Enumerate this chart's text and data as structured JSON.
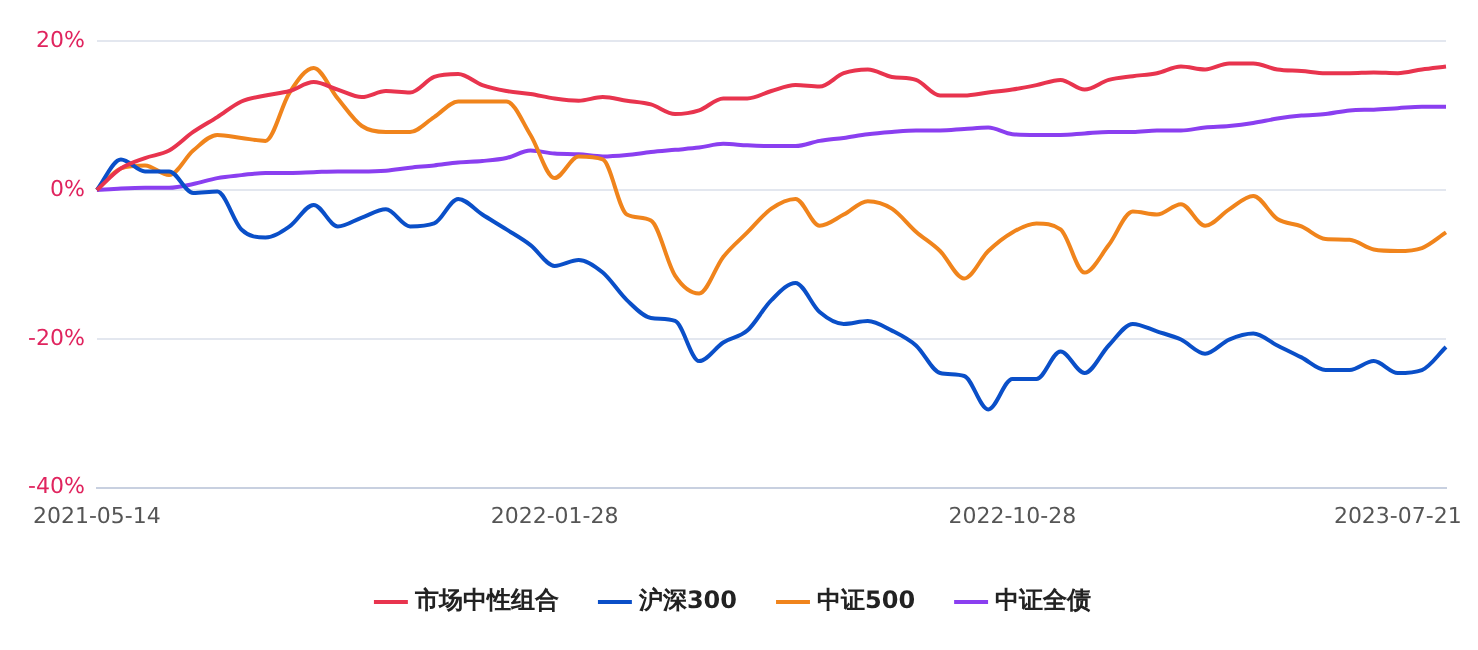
{
  "chart_data": {
    "type": "line",
    "categories": [
      "2021-05-14",
      null,
      null,
      null,
      null,
      null,
      null,
      null,
      null,
      null,
      null,
      null,
      null,
      null,
      null,
      null,
      null,
      null,
      null,
      "2022-01-28",
      null,
      null,
      null,
      null,
      null,
      null,
      null,
      null,
      null,
      null,
      null,
      null,
      null,
      null,
      null,
      null,
      null,
      null,
      "2022-10-28",
      null,
      null,
      null,
      null,
      null,
      null,
      null,
      null,
      null,
      null,
      null,
      null,
      null,
      null,
      null,
      "2023-07-21",
      null,
      null
    ],
    "series": [
      {
        "name": "市场中性组合",
        "color": "#e8344e",
        "values": [
          0,
          2.9,
          4.3,
          5.3,
          7.8,
          9.8,
          11.9,
          12.7,
          13.3,
          14.5,
          13.5,
          12.5,
          13.3,
          13.1,
          15.2,
          15.6,
          14.1,
          13.3,
          12.9,
          12.3,
          12.0,
          12.5,
          12.0,
          11.5,
          10.2,
          10.7,
          12.3,
          12.3,
          13.3,
          14.1,
          13.9,
          15.7,
          16.2,
          15.2,
          14.8,
          12.7,
          12.7,
          13.1,
          13.5,
          14.1,
          14.8,
          13.5,
          14.8,
          15.3,
          15.7,
          16.6,
          16.2,
          17.0,
          17.0,
          16.2,
          16.0,
          15.7,
          15.7,
          15.8,
          15.7,
          16.2,
          16.6
        ]
      },
      {
        "name": "沪深300",
        "color": "#0a4fc8",
        "values": [
          0,
          4.1,
          2.5,
          2.5,
          -0.4,
          -0.2,
          -5.3,
          -6.4,
          -4.9,
          -2.0,
          -4.9,
          -3.7,
          -2.6,
          -4.9,
          -4.5,
          -1.2,
          -3.3,
          -5.3,
          -7.4,
          -10.2,
          -9.4,
          -11.1,
          -14.8,
          -17.2,
          -17.6,
          -23.0,
          -20.5,
          -18.9,
          -14.8,
          -12.5,
          -16.4,
          -18.0,
          -17.6,
          -18.9,
          -20.9,
          -24.6,
          -25.0,
          -29.5,
          -25.4,
          -25.4,
          -21.7,
          -24.6,
          -20.9,
          -18.0,
          -19.0,
          -20.1,
          -22.0,
          -20.1,
          -19.3,
          -20.9,
          -22.5,
          -24.2,
          -24.2,
          -23.0,
          -24.6,
          -24.2,
          -21.1
        ]
      },
      {
        "name": "中证500",
        "color": "#f0841c",
        "values": [
          0,
          2.9,
          3.3,
          2.0,
          5.3,
          7.4,
          7.0,
          6.6,
          13.1,
          16.4,
          12.3,
          8.6,
          7.8,
          7.8,
          9.8,
          11.9,
          11.9,
          11.9,
          7.4,
          1.6,
          4.5,
          4.1,
          -3.3,
          -4.1,
          -11.5,
          -13.9,
          -9.0,
          -5.7,
          -2.5,
          -1.2,
          -4.8,
          -3.3,
          -1.5,
          -2.5,
          -5.6,
          -8.2,
          -11.9,
          -8.2,
          -5.7,
          -4.5,
          -5.3,
          -11.1,
          -7.4,
          -2.9,
          -3.3,
          -1.9,
          -4.8,
          -2.6,
          -0.8,
          -3.9,
          -4.9,
          -6.6,
          -6.7,
          -8.0,
          -8.2,
          -7.8,
          -5.7
        ]
      },
      {
        "name": "中证全债",
        "color": "#8a3ff0",
        "values": [
          0,
          0.2,
          0.3,
          0.3,
          0.8,
          1.6,
          2.0,
          2.3,
          2.3,
          2.4,
          2.5,
          2.5,
          2.6,
          3.0,
          3.3,
          3.7,
          3.9,
          4.3,
          5.3,
          4.9,
          4.8,
          4.5,
          4.7,
          5.1,
          5.4,
          5.7,
          6.2,
          6.0,
          5.9,
          5.9,
          6.6,
          7.0,
          7.5,
          7.8,
          8.0,
          8.0,
          8.2,
          8.4,
          7.5,
          7.4,
          7.4,
          7.6,
          7.8,
          7.8,
          8.0,
          8.0,
          8.4,
          8.6,
          9.0,
          9.6,
          10.0,
          10.2,
          10.7,
          10.8,
          11.0,
          11.2,
          11.2
        ]
      }
    ],
    "ylim": [
      -40,
      20
    ],
    "yticks": [
      {
        "value": 20,
        "label": "20%"
      },
      {
        "value": 0,
        "label": "0%"
      },
      {
        "value": -20,
        "label": "-20%"
      },
      {
        "value": -40,
        "label": "-40%"
      }
    ],
    "grid": "y",
    "legend": "bottom",
    "marker": "none",
    "line_style": "solid"
  }
}
